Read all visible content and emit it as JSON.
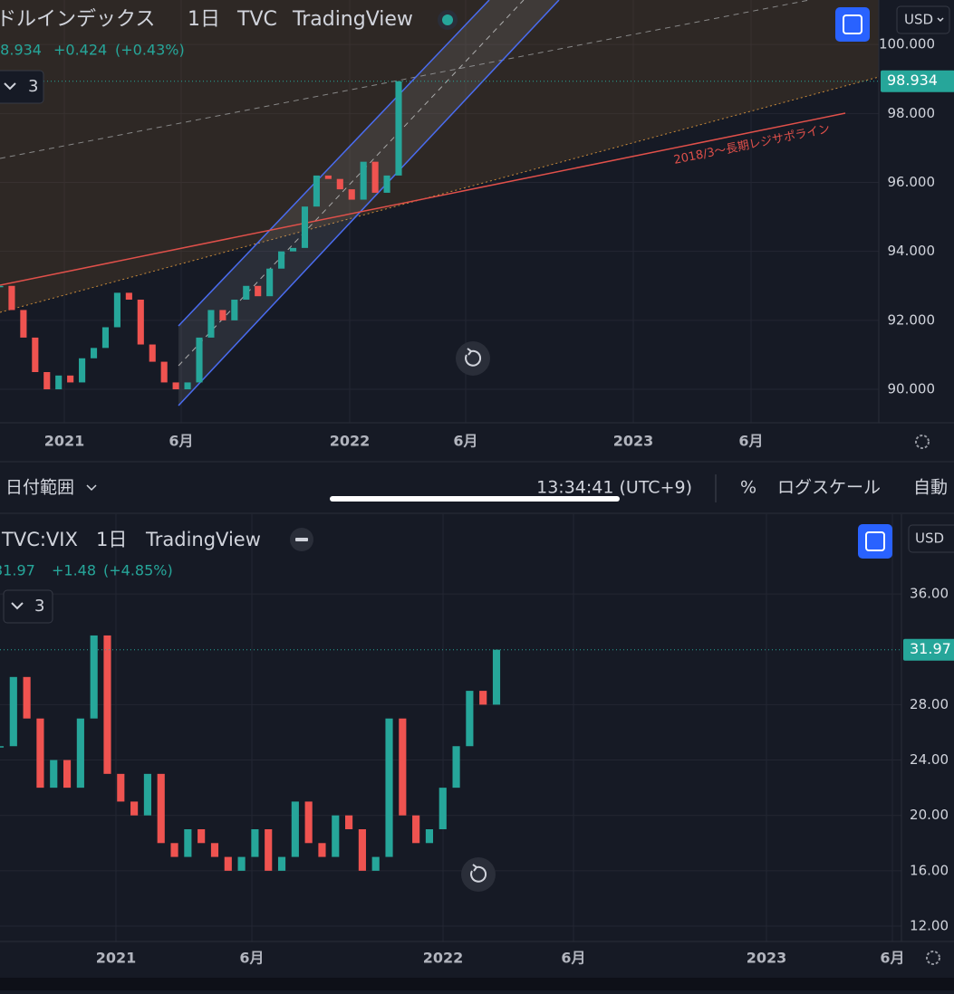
{
  "top_chart": {
    "title": "ドルインデックス",
    "interval": "1日",
    "exchange": "TVC",
    "source": "TradingView",
    "change": "+0.424",
    "change_pct": "(+0.43%)",
    "indicators": "3",
    "currency": "USD",
    "trendline_label": "2018/3〜長期レジサポライン",
    "ylim": [
      89.03,
      101.29
    ],
    "yticks": [
      {
        "value": 100,
        "label": "100.000"
      },
      {
        "value": 98,
        "label": "98.000"
      },
      {
        "value": 96,
        "label": "96.000"
      },
      {
        "value": 94,
        "label": "94.000"
      },
      {
        "value": 92,
        "label": "92.000"
      },
      {
        "value": 90,
        "label": "90.000"
      }
    ],
    "closes": [
      93.0,
      92.3,
      91.5,
      90.5,
      90.0,
      90.4,
      90.2,
      90.9,
      91.2,
      91.8,
      92.8,
      92.6,
      91.3,
      90.8,
      90.2,
      90.0,
      90.2,
      91.5,
      92.3,
      92.0,
      92.6,
      93.0,
      92.7,
      93.5,
      94.0,
      94.1,
      95.3,
      96.2,
      96.1,
      95.8,
      95.5,
      96.6,
      95.7,
      96.2,
      98.934
    ],
    "up_color": "#26a69a",
    "down_color": "#ef5350",
    "time_labels": [
      "2021",
      "6月",
      "2022",
      "6月",
      "2023",
      "6月"
    ]
  },
  "toolbar": {
    "date_range": "日付範囲",
    "clock": "13:34:41 (UTC+9)",
    "percent": "%",
    "log_scale": "ログスケール",
    "auto": "自動"
  },
  "bottom_chart": {
    "title": "TVC:VIX",
    "interval": "1日",
    "source": "TradingView",
    "change": "+1.48",
    "change_pct": "(+4.85%)",
    "indicators": "3",
    "currency": "USD",
    "ylim": [
      10.89,
      41.76
    ],
    "yticks": [
      {
        "value": 36,
        "label": "36.00"
      },
      {
        "value": 28,
        "label": "28.00"
      },
      {
        "value": 24,
        "label": "24.00"
      },
      {
        "value": 20,
        "label": "20.00"
      },
      {
        "value": 16,
        "label": "16.00"
      },
      {
        "value": 12,
        "label": "12.00"
      }
    ],
    "closes": [
      25,
      30,
      27,
      22,
      24,
      22,
      27,
      33,
      23,
      21,
      20,
      23,
      18,
      17,
      19,
      18,
      17,
      16,
      17,
      19,
      16,
      17,
      21,
      18,
      17,
      20,
      19,
      16,
      17,
      27,
      20,
      18,
      19,
      22,
      25,
      29,
      28,
      31.97
    ],
    "up_color": "#26a69a",
    "down_color": "#ef5350",
    "time_labels": [
      "2021",
      "6月",
      "2022",
      "6月",
      "2023",
      "6月"
    ]
  }
}
